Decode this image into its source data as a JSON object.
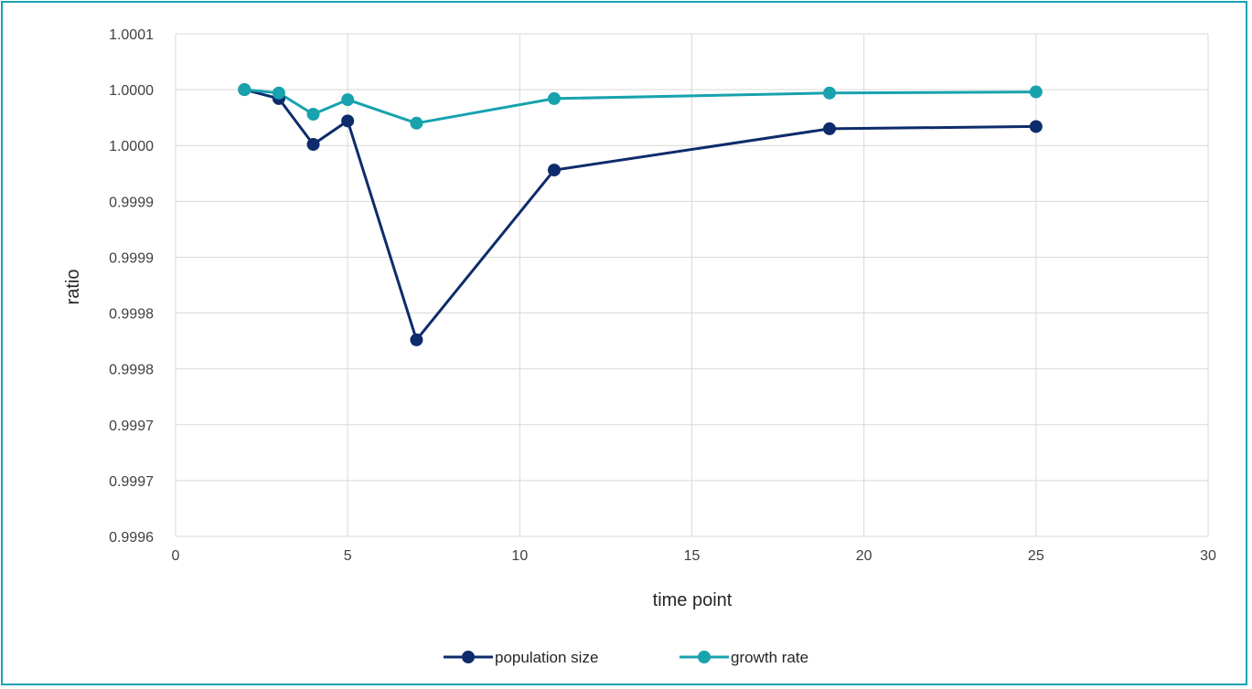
{
  "chart_data": {
    "type": "scatter",
    "xlabel": "time point",
    "ylabel": "ratio",
    "xlim": [
      0,
      30
    ],
    "ylim": [
      0.9996,
      1.00005
    ],
    "x_ticks": [
      0,
      5,
      10,
      15,
      20,
      25,
      30
    ],
    "x_tick_labels": [
      "0",
      "5",
      "10",
      "15",
      "20",
      "25",
      "30"
    ],
    "y_ticks": [
      0.9996,
      0.99965,
      0.9997,
      0.99975,
      0.9998,
      0.99985,
      0.9999,
      0.99995,
      1.0,
      1.00005
    ],
    "y_tick_labels": [
      "0.9996",
      "0.9997",
      "0.9997",
      "0.9998",
      "0.9998",
      "0.9999",
      "0.9999",
      "1.0000",
      "1.0000",
      "1.0001"
    ],
    "grid": true,
    "legend_position": "bottom",
    "series": [
      {
        "name": "population size",
        "color": "#0E2C6B",
        "x": [
          2,
          3,
          4,
          5,
          7,
          11,
          19,
          25
        ],
        "y": [
          1.0,
          0.999992,
          0.999951,
          0.999972,
          0.999776,
          0.999928,
          0.999965,
          0.999967
        ]
      },
      {
        "name": "growth rate",
        "color": "#17A2AE",
        "x": [
          2,
          3,
          4,
          5,
          7,
          11,
          19,
          25
        ],
        "y": [
          1.0,
          0.999997,
          0.999978,
          0.999991,
          0.99997,
          0.999992,
          0.999997,
          0.999998
        ]
      }
    ]
  }
}
